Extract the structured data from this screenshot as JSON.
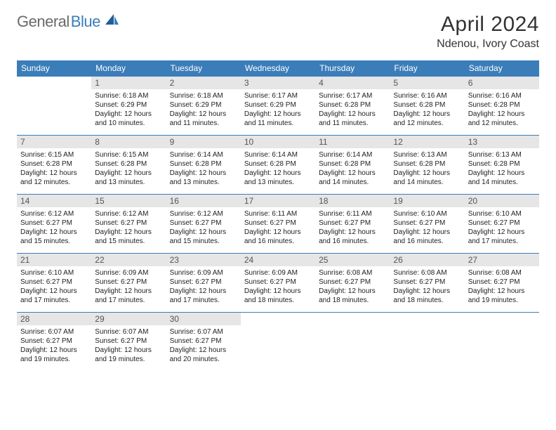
{
  "brand": {
    "part1": "General",
    "part2": "Blue"
  },
  "title": {
    "month": "April 2024",
    "location": "Ndenou, Ivory Coast"
  },
  "colors": {
    "header_bg": "#3b7db9",
    "header_fg": "#ffffff",
    "daynum_bg": "#e6e6e6",
    "border": "#3b7db9",
    "logo_gray": "#6a6a6a",
    "logo_blue": "#3b7db9"
  },
  "day_headers": [
    "Sunday",
    "Monday",
    "Tuesday",
    "Wednesday",
    "Thursday",
    "Friday",
    "Saturday"
  ],
  "weeks": [
    [
      null,
      {
        "n": "1",
        "sr": "6:18 AM",
        "ss": "6:29 PM",
        "dl": "12 hours and 10 minutes."
      },
      {
        "n": "2",
        "sr": "6:18 AM",
        "ss": "6:29 PM",
        "dl": "12 hours and 11 minutes."
      },
      {
        "n": "3",
        "sr": "6:17 AM",
        "ss": "6:29 PM",
        "dl": "12 hours and 11 minutes."
      },
      {
        "n": "4",
        "sr": "6:17 AM",
        "ss": "6:28 PM",
        "dl": "12 hours and 11 minutes."
      },
      {
        "n": "5",
        "sr": "6:16 AM",
        "ss": "6:28 PM",
        "dl": "12 hours and 12 minutes."
      },
      {
        "n": "6",
        "sr": "6:16 AM",
        "ss": "6:28 PM",
        "dl": "12 hours and 12 minutes."
      }
    ],
    [
      {
        "n": "7",
        "sr": "6:15 AM",
        "ss": "6:28 PM",
        "dl": "12 hours and 12 minutes."
      },
      {
        "n": "8",
        "sr": "6:15 AM",
        "ss": "6:28 PM",
        "dl": "12 hours and 13 minutes."
      },
      {
        "n": "9",
        "sr": "6:14 AM",
        "ss": "6:28 PM",
        "dl": "12 hours and 13 minutes."
      },
      {
        "n": "10",
        "sr": "6:14 AM",
        "ss": "6:28 PM",
        "dl": "12 hours and 13 minutes."
      },
      {
        "n": "11",
        "sr": "6:14 AM",
        "ss": "6:28 PM",
        "dl": "12 hours and 14 minutes."
      },
      {
        "n": "12",
        "sr": "6:13 AM",
        "ss": "6:28 PM",
        "dl": "12 hours and 14 minutes."
      },
      {
        "n": "13",
        "sr": "6:13 AM",
        "ss": "6:28 PM",
        "dl": "12 hours and 14 minutes."
      }
    ],
    [
      {
        "n": "14",
        "sr": "6:12 AM",
        "ss": "6:27 PM",
        "dl": "12 hours and 15 minutes."
      },
      {
        "n": "15",
        "sr": "6:12 AM",
        "ss": "6:27 PM",
        "dl": "12 hours and 15 minutes."
      },
      {
        "n": "16",
        "sr": "6:12 AM",
        "ss": "6:27 PM",
        "dl": "12 hours and 15 minutes."
      },
      {
        "n": "17",
        "sr": "6:11 AM",
        "ss": "6:27 PM",
        "dl": "12 hours and 16 minutes."
      },
      {
        "n": "18",
        "sr": "6:11 AM",
        "ss": "6:27 PM",
        "dl": "12 hours and 16 minutes."
      },
      {
        "n": "19",
        "sr": "6:10 AM",
        "ss": "6:27 PM",
        "dl": "12 hours and 16 minutes."
      },
      {
        "n": "20",
        "sr": "6:10 AM",
        "ss": "6:27 PM",
        "dl": "12 hours and 17 minutes."
      }
    ],
    [
      {
        "n": "21",
        "sr": "6:10 AM",
        "ss": "6:27 PM",
        "dl": "12 hours and 17 minutes."
      },
      {
        "n": "22",
        "sr": "6:09 AM",
        "ss": "6:27 PM",
        "dl": "12 hours and 17 minutes."
      },
      {
        "n": "23",
        "sr": "6:09 AM",
        "ss": "6:27 PM",
        "dl": "12 hours and 17 minutes."
      },
      {
        "n": "24",
        "sr": "6:09 AM",
        "ss": "6:27 PM",
        "dl": "12 hours and 18 minutes."
      },
      {
        "n": "25",
        "sr": "6:08 AM",
        "ss": "6:27 PM",
        "dl": "12 hours and 18 minutes."
      },
      {
        "n": "26",
        "sr": "6:08 AM",
        "ss": "6:27 PM",
        "dl": "12 hours and 18 minutes."
      },
      {
        "n": "27",
        "sr": "6:08 AM",
        "ss": "6:27 PM",
        "dl": "12 hours and 19 minutes."
      }
    ],
    [
      {
        "n": "28",
        "sr": "6:07 AM",
        "ss": "6:27 PM",
        "dl": "12 hours and 19 minutes."
      },
      {
        "n": "29",
        "sr": "6:07 AM",
        "ss": "6:27 PM",
        "dl": "12 hours and 19 minutes."
      },
      {
        "n": "30",
        "sr": "6:07 AM",
        "ss": "6:27 PM",
        "dl": "12 hours and 20 minutes."
      },
      null,
      null,
      null,
      null
    ]
  ],
  "labels": {
    "sunrise": "Sunrise:",
    "sunset": "Sunset:",
    "daylight": "Daylight:"
  }
}
